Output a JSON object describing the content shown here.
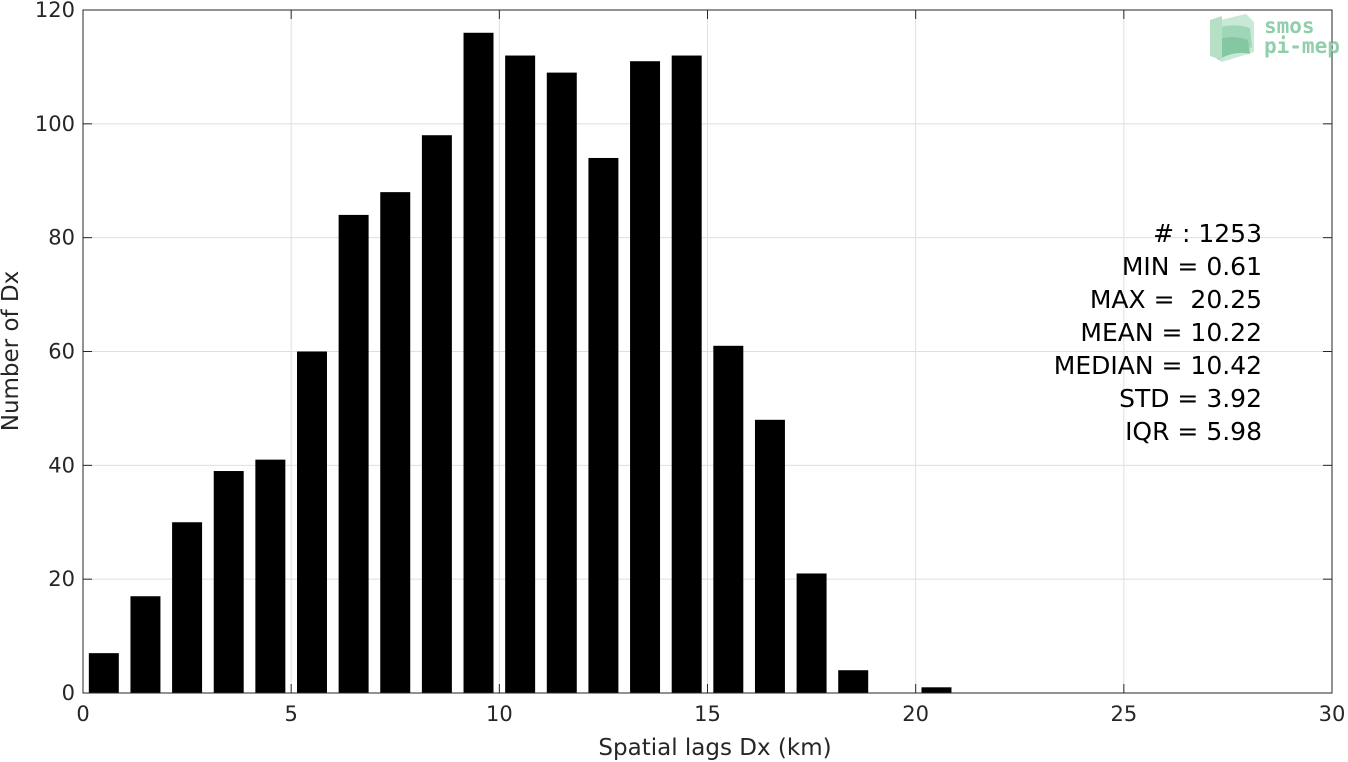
{
  "chart_data": {
    "type": "bar",
    "xlabel": "Spatial lags Dx (km)",
    "ylabel": "Number of Dx",
    "xlim": [
      0,
      30
    ],
    "ylim": [
      0,
      120
    ],
    "xticks": [
      0,
      5,
      10,
      15,
      20,
      25,
      30
    ],
    "yticks": [
      0,
      20,
      40,
      60,
      80,
      100,
      120
    ],
    "grid": true,
    "bar_color": "#000000",
    "bin_width": 1,
    "x": [
      0.5,
      1.5,
      2.5,
      3.5,
      4.5,
      5.5,
      6.5,
      7.5,
      8.5,
      9.5,
      10.5,
      11.5,
      12.5,
      13.5,
      14.5,
      15.5,
      16.5,
      17.5,
      18.5,
      19.5,
      20.5
    ],
    "values": [
      7,
      17,
      30,
      39,
      41,
      60,
      84,
      88,
      98,
      116,
      112,
      109,
      94,
      111,
      112,
      61,
      48,
      21,
      4,
      0,
      1
    ],
    "stats": [
      "# : 1253",
      "MIN = 0.61",
      "MAX =  20.25",
      "MEAN = 10.22",
      "MEDIAN = 10.42",
      "STD = 3.92",
      "IQR = 5.98"
    ]
  },
  "logo": {
    "line1": "smos",
    "line2": "pi-mep",
    "color": "#8fcfab"
  }
}
